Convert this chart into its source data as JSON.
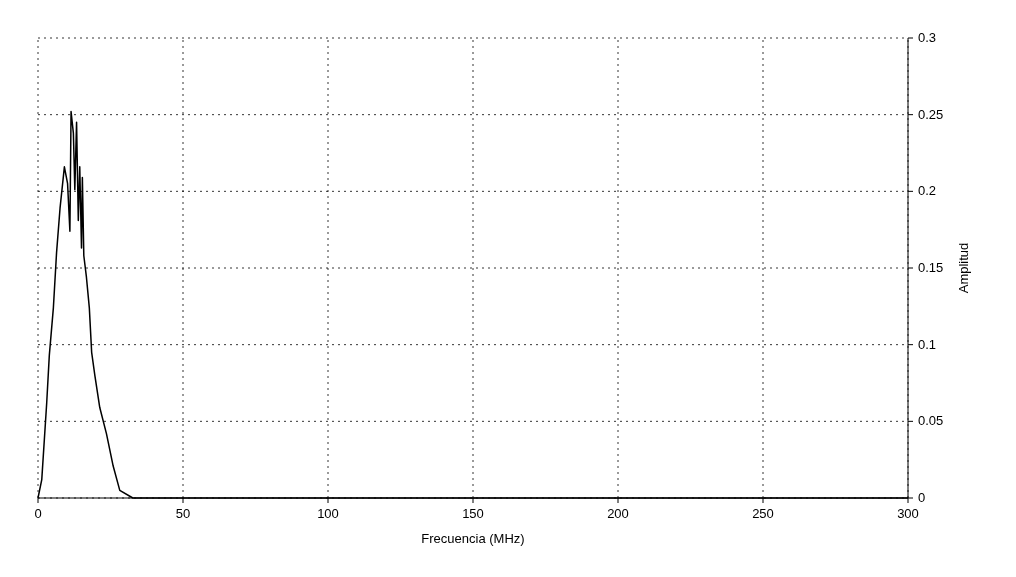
{
  "chart_data": {
    "type": "line",
    "xlabel": "Frecuencia (MHz)",
    "ylabel": "Amplitud",
    "xlim": [
      0,
      300
    ],
    "xticks": [
      0,
      50,
      100,
      150,
      200,
      250,
      300
    ],
    "ylim": [
      0,
      0.3
    ],
    "yticks": [
      0,
      0.05,
      0.1,
      0.15,
      0.2,
      0.25,
      0.3
    ],
    "grid": true,
    "series": [
      {
        "color": "#000000",
        "x": [
          0,
          1.3,
          3.0,
          3.9,
          5.3,
          6.4,
          7.6,
          9.1,
          10.2,
          11.0,
          11.4,
          12.2,
          12.7,
          13.3,
          13.9,
          14.4,
          15.0,
          15.3,
          15.8,
          16.7,
          17.7,
          18.5,
          19.6,
          21.3,
          23.6,
          25.9,
          28.2,
          32.7,
          50,
          100,
          150,
          200,
          250,
          300
        ],
        "values": [
          0,
          0.012,
          0.062,
          0.093,
          0.124,
          0.16,
          0.189,
          0.216,
          0.205,
          0.174,
          0.252,
          0.238,
          0.201,
          0.245,
          0.181,
          0.216,
          0.163,
          0.209,
          0.158,
          0.144,
          0.124,
          0.095,
          0.08,
          0.059,
          0.042,
          0.021,
          0.005,
          0,
          0,
          0,
          0,
          0,
          0,
          0
        ]
      }
    ]
  }
}
